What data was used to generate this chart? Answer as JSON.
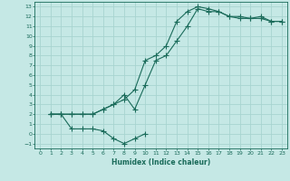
{
  "xlabel": "Humidex (Indice chaleur)",
  "bg_color": "#c5e8e5",
  "grid_color": "#a8d4d0",
  "line_color": "#1a6b5a",
  "xlim": [
    -0.5,
    23.5
  ],
  "ylim": [
    -1.5,
    13.5
  ],
  "xticks": [
    0,
    1,
    2,
    3,
    4,
    5,
    6,
    7,
    8,
    9,
    10,
    11,
    12,
    13,
    14,
    15,
    16,
    17,
    18,
    19,
    20,
    21,
    22,
    23
  ],
  "yticks": [
    -1,
    0,
    1,
    2,
    3,
    4,
    5,
    6,
    7,
    8,
    9,
    10,
    11,
    12,
    13
  ],
  "line1_x": [
    1,
    2,
    3,
    4,
    5,
    6,
    7,
    8,
    9,
    10,
    11,
    12,
    13,
    14,
    15,
    16,
    17,
    18,
    19,
    20,
    21,
    22,
    23
  ],
  "line1_y": [
    2,
    2,
    2,
    2,
    2,
    2.5,
    3,
    3.5,
    4.5,
    7.5,
    8,
    9,
    11.5,
    12.5,
    13,
    12.8,
    12.5,
    12,
    12,
    11.8,
    11.8,
    11.5,
    11.5
  ],
  "line2_x": [
    1,
    2,
    3,
    4,
    5,
    6,
    7,
    8,
    9,
    10,
    11,
    12,
    13,
    14,
    15,
    16,
    17,
    18,
    19,
    20,
    21,
    22,
    23
  ],
  "line2_y": [
    2,
    2,
    2,
    2,
    2,
    2.5,
    3,
    4,
    2.5,
    5,
    7.5,
    8,
    9.5,
    11,
    12.8,
    12.5,
    12.5,
    12,
    11.8,
    11.8,
    12,
    11.5,
    11.5
  ],
  "line3_x": [
    1,
    2,
    3,
    4,
    5,
    6,
    7,
    8,
    9,
    10
  ],
  "line3_y": [
    2,
    2,
    0.5,
    0.5,
    0.5,
    0.3,
    -0.5,
    -1,
    -0.5,
    0
  ]
}
